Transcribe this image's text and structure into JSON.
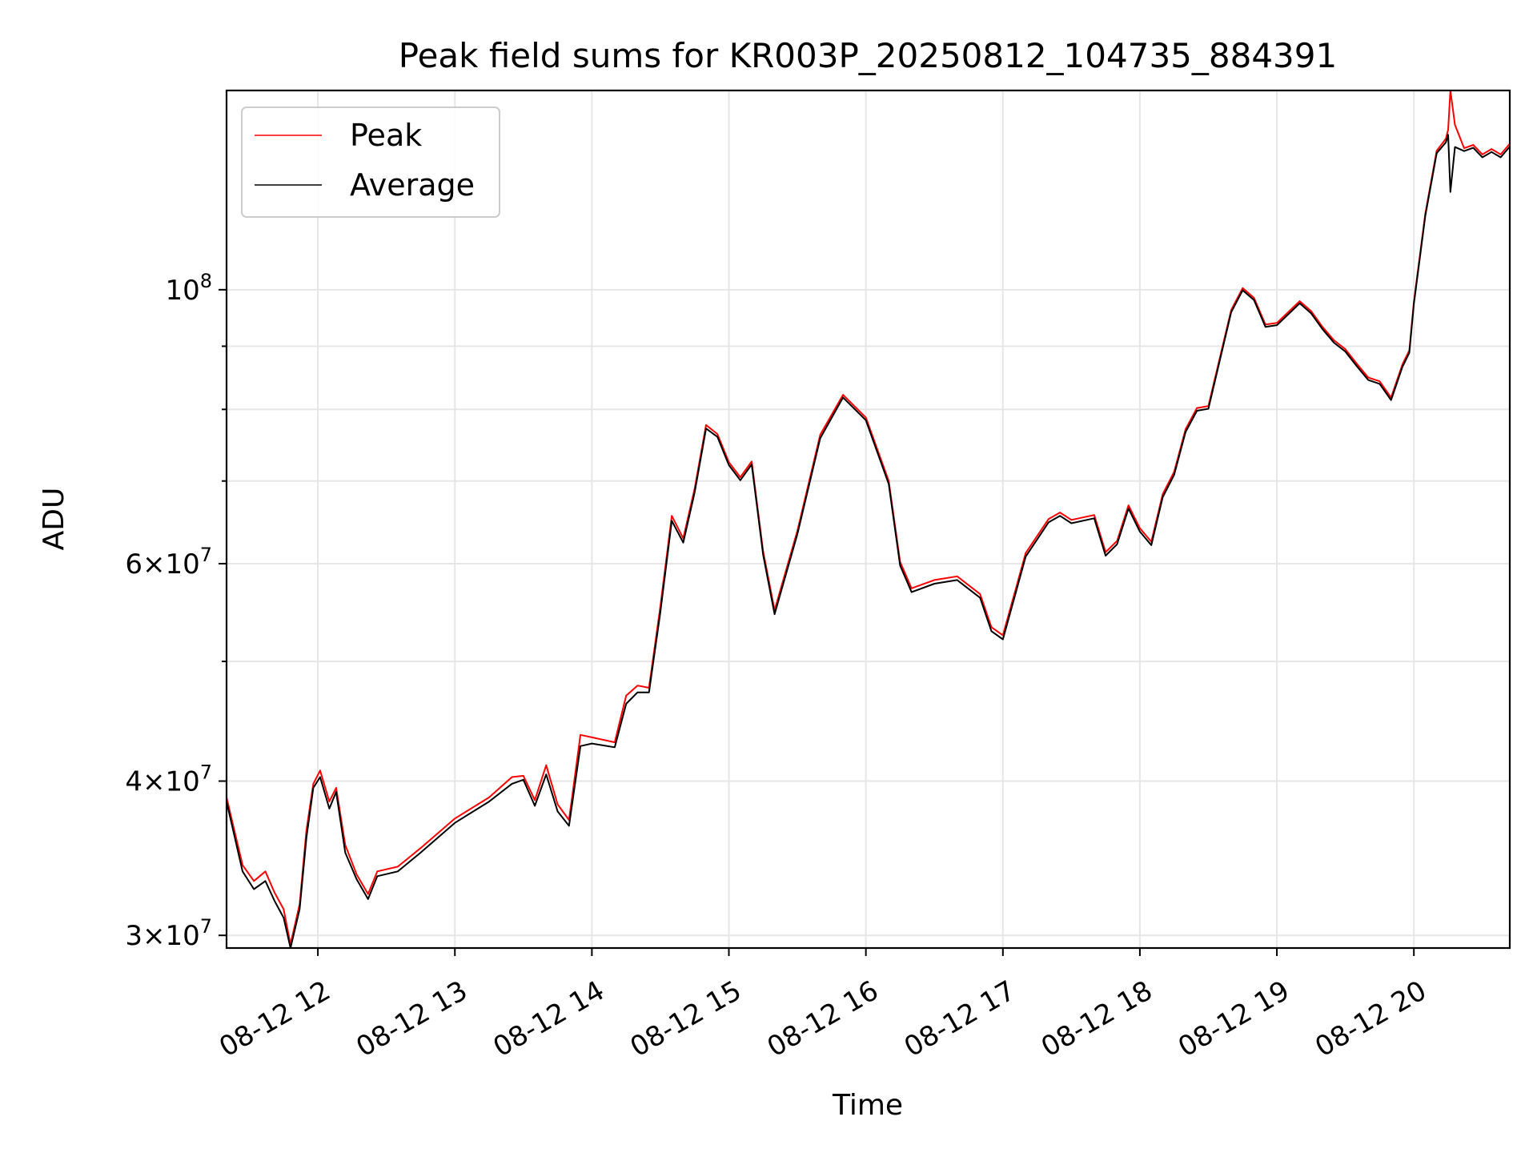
{
  "chart_data": {
    "type": "line",
    "title": "Peak field sums for KR003P_20250812_104735_884391",
    "xlabel": "Time",
    "ylabel": "ADU",
    "y_scale": "log",
    "xlim": [
      "2025-08-12 11:20",
      "2025-08-12 20:42"
    ],
    "ylim": [
      29300000,
      145000000
    ],
    "grid": true,
    "legend_position": "upper-left",
    "x_ticks": [
      {
        "x": "2025-08-12 12:00",
        "label": "08-12 12"
      },
      {
        "x": "2025-08-12 13:00",
        "label": "08-12 13"
      },
      {
        "x": "2025-08-12 14:00",
        "label": "08-12 14"
      },
      {
        "x": "2025-08-12 15:00",
        "label": "08-12 15"
      },
      {
        "x": "2025-08-12 16:00",
        "label": "08-12 16"
      },
      {
        "x": "2025-08-12 17:00",
        "label": "08-12 17"
      },
      {
        "x": "2025-08-12 18:00",
        "label": "08-12 18"
      },
      {
        "x": "2025-08-12 19:00",
        "label": "08-12 19"
      },
      {
        "x": "2025-08-12 20:00",
        "label": "08-12 20"
      }
    ],
    "y_major_ticks": [
      {
        "value": 30000000,
        "mantissa": "3",
        "exponent": "7"
      },
      {
        "value": 40000000,
        "mantissa": "4",
        "exponent": "7"
      },
      {
        "value": 60000000,
        "mantissa": "6",
        "exponent": "7"
      },
      {
        "value": 100000000,
        "mantissa": "",
        "exponent": "8"
      }
    ],
    "y_minor_ticks": [
      50000000,
      70000000,
      80000000,
      90000000
    ],
    "x": [
      "2025-08-12 11:20",
      "2025-08-12 11:27",
      "2025-08-12 11:32",
      "2025-08-12 11:37",
      "2025-08-12 11:41",
      "2025-08-12 11:45",
      "2025-08-12 11:48",
      "2025-08-12 11:52",
      "2025-08-12 11:55",
      "2025-08-12 11:58",
      "2025-08-12 12:01",
      "2025-08-12 12:05",
      "2025-08-12 12:08",
      "2025-08-12 12:12",
      "2025-08-12 12:17",
      "2025-08-12 12:22",
      "2025-08-12 12:26",
      "2025-08-12 12:35",
      "2025-08-12 12:45",
      "2025-08-12 13:00",
      "2025-08-12 13:15",
      "2025-08-12 13:25",
      "2025-08-12 13:30",
      "2025-08-12 13:35",
      "2025-08-12 13:40",
      "2025-08-12 13:45",
      "2025-08-12 13:50",
      "2025-08-12 13:55",
      "2025-08-12 14:00",
      "2025-08-12 14:10",
      "2025-08-12 14:15",
      "2025-08-12 14:20",
      "2025-08-12 14:25",
      "2025-08-12 14:30",
      "2025-08-12 14:35",
      "2025-08-12 14:40",
      "2025-08-12 14:45",
      "2025-08-12 14:50",
      "2025-08-12 14:55",
      "2025-08-12 15:00",
      "2025-08-12 15:05",
      "2025-08-12 15:10",
      "2025-08-12 15:15",
      "2025-08-12 15:20",
      "2025-08-12 15:30",
      "2025-08-12 15:40",
      "2025-08-12 15:50",
      "2025-08-12 16:00",
      "2025-08-12 16:10",
      "2025-08-12 16:15",
      "2025-08-12 16:20",
      "2025-08-12 16:30",
      "2025-08-12 16:40",
      "2025-08-12 16:50",
      "2025-08-12 16:55",
      "2025-08-12 17:00",
      "2025-08-12 17:10",
      "2025-08-12 17:20",
      "2025-08-12 17:25",
      "2025-08-12 17:30",
      "2025-08-12 17:40",
      "2025-08-12 17:45",
      "2025-08-12 17:50",
      "2025-08-12 17:55",
      "2025-08-12 18:00",
      "2025-08-12 18:05",
      "2025-08-12 18:10",
      "2025-08-12 18:15",
      "2025-08-12 18:20",
      "2025-08-12 18:25",
      "2025-08-12 18:30",
      "2025-08-12 18:40",
      "2025-08-12 18:45",
      "2025-08-12 18:50",
      "2025-08-12 18:55",
      "2025-08-12 19:00",
      "2025-08-12 19:10",
      "2025-08-12 19:15",
      "2025-08-12 19:20",
      "2025-08-12 19:25",
      "2025-08-12 19:30",
      "2025-08-12 19:35",
      "2025-08-12 19:40",
      "2025-08-12 19:45",
      "2025-08-12 19:50",
      "2025-08-12 19:55",
      "2025-08-12 19:58",
      "2025-08-12 20:00",
      "2025-08-12 20:05",
      "2025-08-12 20:10",
      "2025-08-12 20:14",
      "2025-08-12 20:15",
      "2025-08-12 20:16",
      "2025-08-12 20:18",
      "2025-08-12 20:22",
      "2025-08-12 20:26",
      "2025-08-12 20:30",
      "2025-08-12 20:34",
      "2025-08-12 20:38",
      "2025-08-12 20:42"
    ],
    "series": [
      {
        "name": "Peak",
        "color": "#ff0000",
        "values": [
          38800000,
          34200000,
          33200000,
          33800000,
          32500000,
          31500000,
          29500000,
          31800000,
          36500000,
          39800000,
          40800000,
          38500000,
          39500000,
          35500000,
          33600000,
          32400000,
          33800000,
          34100000,
          35300000,
          37300000,
          38800000,
          40300000,
          40400000,
          38600000,
          41200000,
          38300000,
          37200000,
          43600000,
          43400000,
          43000000,
          46900000,
          47800000,
          47600000,
          55400000,
          65600000,
          62900000,
          69000000,
          77700000,
          76400000,
          72500000,
          70500000,
          72600000,
          61400000,
          55000000,
          63800000,
          76300000,
          82200000,
          78800000,
          70000000,
          60200000,
          57300000,
          58200000,
          58600000,
          56700000,
          53300000,
          52500000,
          61200000,
          65200000,
          66000000,
          65100000,
          65700000,
          61300000,
          62600000,
          66900000,
          64100000,
          62500000,
          68300000,
          71200000,
          77100000,
          80200000,
          80500000,
          96300000,
          100300000,
          98500000,
          93700000,
          94000000,
          97900000,
          96100000,
          93300000,
          91000000,
          89500000,
          87100000,
          84900000,
          84300000,
          81800000,
          87000000,
          89300000,
          97800000,
          115300000,
          129600000,
          132500000,
          134800000,
          145000000,
          136000000,
          130200000,
          131000000,
          128700000,
          130000000,
          128700000,
          131300000
        ]
      },
      {
        "name": "Average",
        "color": "#000000",
        "values": [
          38500000,
          33800000,
          32700000,
          33200000,
          32000000,
          31000000,
          29300000,
          31500000,
          36000000,
          39500000,
          40300000,
          38000000,
          39200000,
          35000000,
          33300000,
          32100000,
          33500000,
          33800000,
          35000000,
          37000000,
          38500000,
          39800000,
          40100000,
          38200000,
          40500000,
          37800000,
          36800000,
          42700000,
          42900000,
          42600000,
          46200000,
          47200000,
          47200000,
          54800000,
          65000000,
          62400000,
          68500000,
          77200000,
          76000000,
          72100000,
          70100000,
          72200000,
          61000000,
          54600000,
          63400000,
          75800000,
          81800000,
          78400000,
          69600000,
          59800000,
          56900000,
          57800000,
          58200000,
          56300000,
          52900000,
          52100000,
          60800000,
          64800000,
          65600000,
          64700000,
          65300000,
          60900000,
          62200000,
          66500000,
          63700000,
          62100000,
          67900000,
          70800000,
          76700000,
          79800000,
          80100000,
          95900000,
          99900000,
          98100000,
          93300000,
          93600000,
          97500000,
          95700000,
          92900000,
          90600000,
          89100000,
          86700000,
          84500000,
          83900000,
          81400000,
          86600000,
          88900000,
          97400000,
          114800000,
          129000000,
          131600000,
          133500000,
          120000000,
          130500000,
          129500000,
          130300000,
          128000000,
          129300000,
          128000000,
          130600000
        ]
      }
    ]
  }
}
